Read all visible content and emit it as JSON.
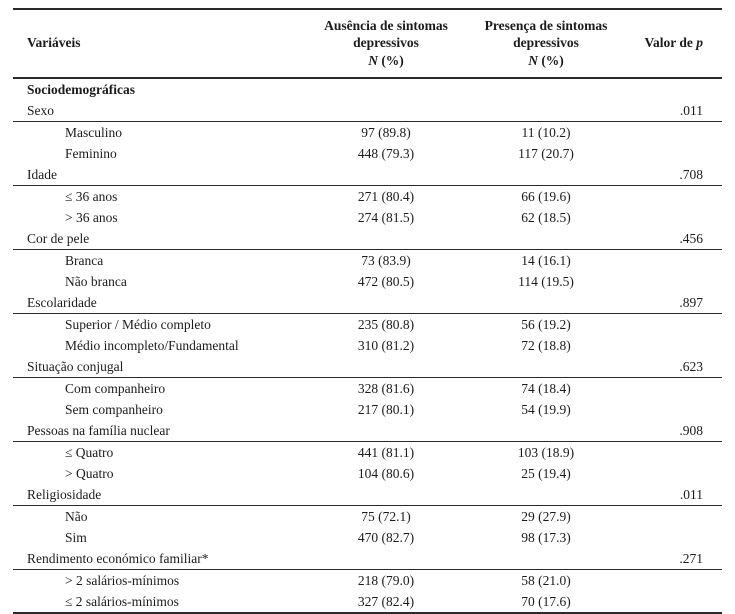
{
  "header": {
    "variables": "Variáveis",
    "absence_line1": "Ausência de sintomas",
    "absence_line2": "depressivos",
    "presence_line1": "Presença de sintomas",
    "presence_line2": "depressivos",
    "n_symbol": "N",
    "n_pct_suffix": "(%)",
    "p_prefix": "Valor de",
    "p_symbol": "p"
  },
  "section_title": "Sociodemográficas",
  "groups": [
    {
      "variable": "Sexo",
      "p_value": ".011",
      "rows": [
        {
          "label": "Masculino",
          "absence": "97 (89.8)",
          "presence": "11 (10.2)"
        },
        {
          "label": "Feminino",
          "absence": "448 (79.3)",
          "presence": "117 (20.7)"
        }
      ]
    },
    {
      "variable": "Idade",
      "p_value": ".708",
      "rows": [
        {
          "label": "≤ 36 anos",
          "absence": "271 (80.4)",
          "presence": "66 (19.6)"
        },
        {
          "label": "> 36 anos",
          "absence": "274 (81.5)",
          "presence": "62 (18.5)"
        }
      ]
    },
    {
      "variable": "Cor de pele",
      "p_value": ".456",
      "rows": [
        {
          "label": "Branca",
          "absence": "73 (83.9)",
          "presence": "14 (16.1)"
        },
        {
          "label": "Não branca",
          "absence": "472 (80.5)",
          "presence": "114 (19.5)"
        }
      ]
    },
    {
      "variable": "Escolaridade",
      "p_value": ".897",
      "rows": [
        {
          "label": "Superior / Médio completo",
          "absence": "235 (80.8)",
          "presence": "56 (19.2)"
        },
        {
          "label": "Médio incompleto/Fundamental",
          "absence": "310 (81.2)",
          "presence": "72 (18.8)"
        }
      ]
    },
    {
      "variable": "Situação conjugal",
      "p_value": ".623",
      "rows": [
        {
          "label": "Com companheiro",
          "absence": "328 (81.6)",
          "presence": "74 (18.4)"
        },
        {
          "label": "Sem companheiro",
          "absence": "217 (80.1)",
          "presence": "54 (19.9)"
        }
      ]
    },
    {
      "variable": "Pessoas na família nuclear",
      "p_value": ".908",
      "rows": [
        {
          "label": "≤ Quatro",
          "absence": "441 (81.1)",
          "presence": "103 (18.9)"
        },
        {
          "label": "> Quatro",
          "absence": "104 (80.6)",
          "presence": "25 (19.4)"
        }
      ]
    },
    {
      "variable": "Religiosidade",
      "p_value": ".011",
      "rows": [
        {
          "label": "Não",
          "absence": "75 (72.1)",
          "presence": "29 (27.9)"
        },
        {
          "label": "Sim",
          "absence": "470 (82.7)",
          "presence": "98 (17.3)"
        }
      ]
    },
    {
      "variable": "Rendimento económico familiar*",
      "p_value": ".271",
      "rows": [
        {
          "label": "> 2 salários-mínimos",
          "absence": "218 (79.0)",
          "presence": "58 (21.0)"
        },
        {
          "label": "≤ 2 salários-mínimos",
          "absence": "327 (82.4)",
          "presence": "70 (17.6)"
        }
      ]
    }
  ],
  "colors": {
    "text": "#1b1b1b",
    "rule": "#2a2a2a",
    "background": "#ffffff"
  }
}
